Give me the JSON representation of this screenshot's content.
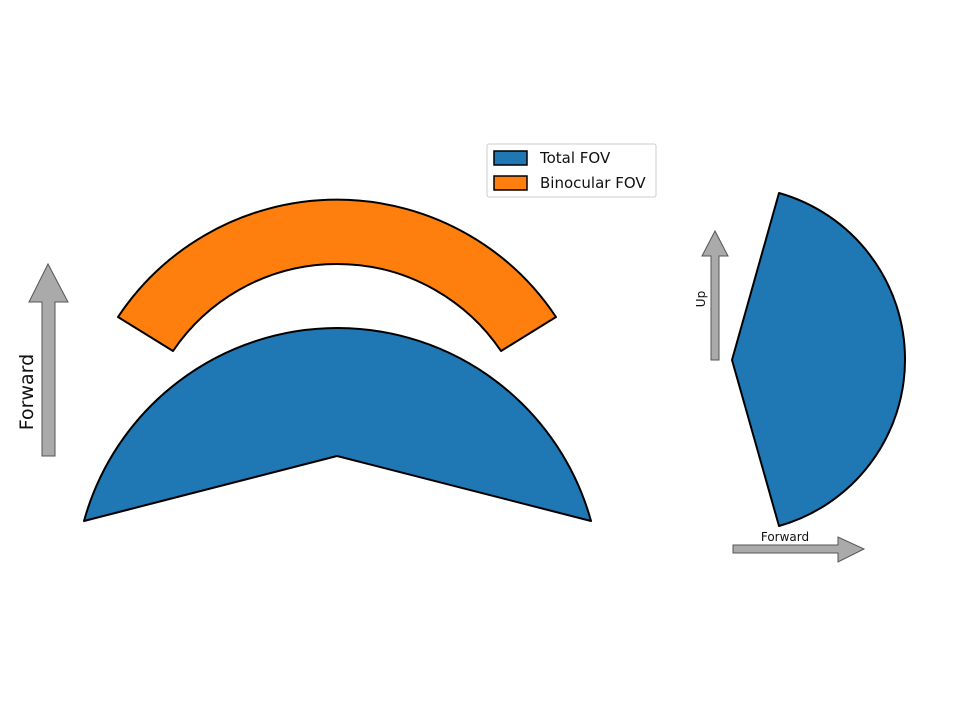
{
  "legend": {
    "items": [
      {
        "label": "Total FOV",
        "color": "#1f77b4"
      },
      {
        "label": "Binocular FOV",
        "color": "#ff7f0e"
      }
    ]
  },
  "top_view": {
    "arrow_label": "Forward"
  },
  "side_view": {
    "up_label": "Up",
    "forward_label": "Forward"
  },
  "colors": {
    "total_fov": "#1f77b4",
    "binocular_fov": "#ff7f0e",
    "arrow": "#aaaaaa",
    "outline": "#000000"
  }
}
